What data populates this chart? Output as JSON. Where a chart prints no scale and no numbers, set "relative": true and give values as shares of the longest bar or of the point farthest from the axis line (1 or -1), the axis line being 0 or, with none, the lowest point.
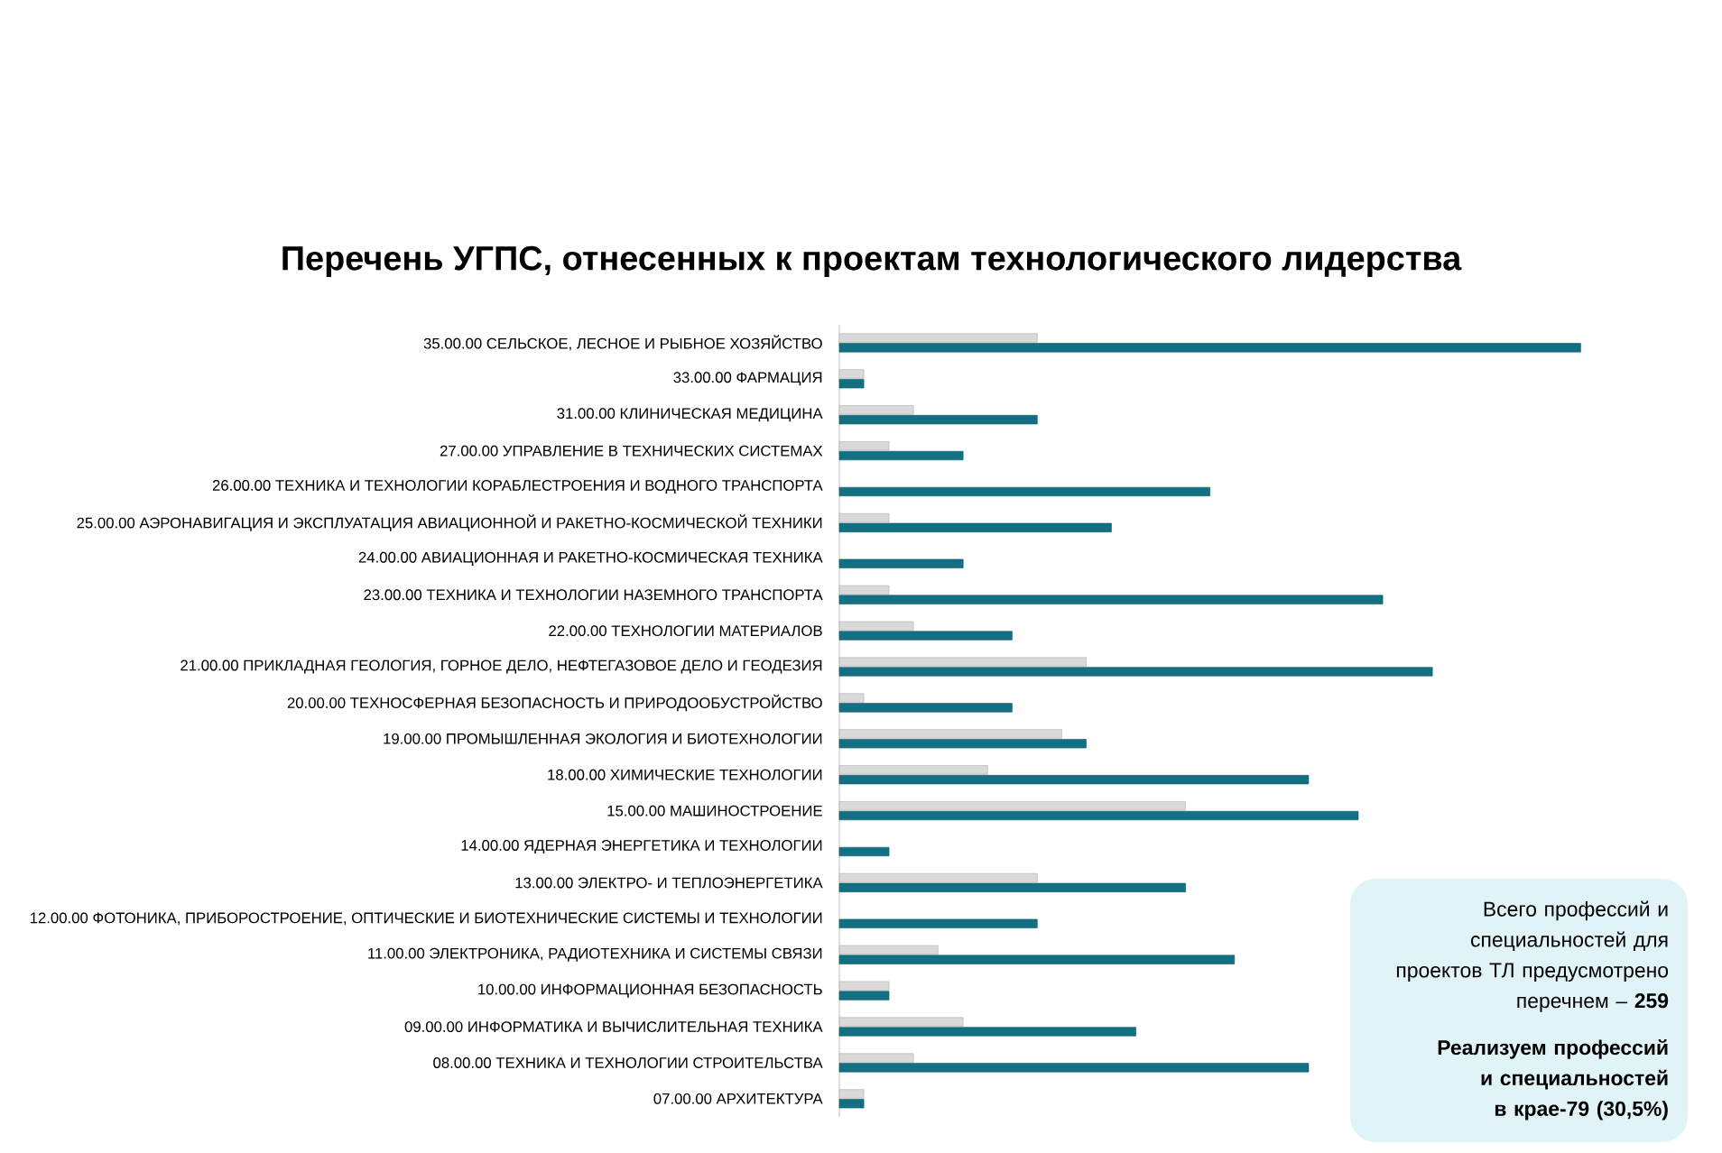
{
  "chart_data": {
    "type": "bar",
    "orientation": "horizontal",
    "relative": true,
    "title": "Перечень УГПС, отнесенных к проектам технологического лидерства",
    "categories": [
      "35.00.00 СЕЛЬСКОЕ, ЛЕСНОЕ И РЫБНОЕ ХОЗЯЙСТВО",
      "33.00.00 ФАРМАЦИЯ",
      "31.00.00 КЛИНИЧЕСКАЯ МЕДИЦИНА",
      "27.00.00 УПРАВЛЕНИЕ В ТЕХНИЧЕСКИХ СИСТЕМАХ",
      "26.00.00 ТЕХНИКА И ТЕХНОЛОГИИ КОРАБЛЕСТРОЕНИЯ И ВОДНОГО ТРАНСПОРТА",
      "25.00.00 АЭРОНАВИГАЦИЯ И ЭКСПЛУАТАЦИЯ АВИАЦИОННОЙ И РАКЕТНО-КОСМИЧЕСКОЙ ТЕХНИКИ",
      "24.00.00 АВИАЦИОННАЯ И РАКЕТНО-КОСМИЧЕСКАЯ ТЕХНИКА",
      "23.00.00 ТЕХНИКА И ТЕХНОЛОГИИ НАЗЕМНОГО ТРАНСПОРТА",
      "22.00.00 ТЕХНОЛОГИИ МАТЕРИАЛОВ",
      "21.00.00 ПРИКЛАДНАЯ ГЕОЛОГИЯ, ГОРНОЕ ДЕЛО, НЕФТЕГАЗОВОЕ ДЕЛО И ГЕОДЕЗИЯ",
      "20.00.00 ТЕХНОСФЕРНАЯ БЕЗОПАСНОСТЬ И ПРИРОДООБУСТРОЙСТВО",
      "19.00.00 ПРОМЫШЛЕННАЯ ЭКОЛОГИЯ И БИОТЕХНОЛОГИИ",
      "18.00.00 ХИМИЧЕСКИЕ ТЕХНОЛОГИИ",
      "15.00.00 МАШИНОСТРОЕНИЕ",
      "14.00.00 ЯДЕРНАЯ ЭНЕРГЕТИКА И ТЕХНОЛОГИИ",
      "13.00.00 ЭЛЕКТРО- И ТЕПЛОЭНЕРГЕТИКА",
      "12.00.00 ФОТОНИКА, ПРИБОРОСТРОЕНИЕ, ОПТИЧЕСКИЕ И БИОТЕХНИЧЕСКИЕ СИСТЕМЫ И ТЕХНОЛОГИИ",
      "11.00.00 ЭЛЕКТРОНИКА, РАДИОТЕХНИКА И СИСТЕМЫ СВЯЗИ",
      "10.00.00 ИНФОРМАЦИОННАЯ БЕЗОПАСНОСТЬ",
      "09.00.00 ИНФОРМАТИКА И ВЫЧИСЛИТЕЛЬНАЯ ТЕХНИКА",
      "08.00.00 ТЕХНИКА И ТЕХНОЛОГИИ СТРОИТЕЛЬСТВА",
      "07.00.00 АРХИТЕКТУРА"
    ],
    "series": [
      {
        "color": "#d9d9d9",
        "values": [
          0.267,
          0.033,
          0.1,
          0.067,
          null,
          0.067,
          null,
          0.067,
          0.1,
          0.333,
          0.033,
          0.3,
          0.2,
          0.467,
          null,
          0.267,
          null,
          0.133,
          0.067,
          0.167,
          0.1,
          0.033
        ]
      },
      {
        "color": "#136f82",
        "values": [
          1,
          0.033,
          0.267,
          0.167,
          0.5,
          0.367,
          0.167,
          0.733,
          0.233,
          0.8,
          0.233,
          0.333,
          0.633,
          0.7,
          0.067,
          0.467,
          0.267,
          0.533,
          0.067,
          0.4,
          0.633,
          0.033
        ]
      }
    ],
    "annotations": [
      "Всего профессий и специальностей для проектов ТЛ предусмотрено перечнем – **259**",
      "Реализуем профессий и специальностей в крае-79 (30,5%)"
    ]
  }
}
